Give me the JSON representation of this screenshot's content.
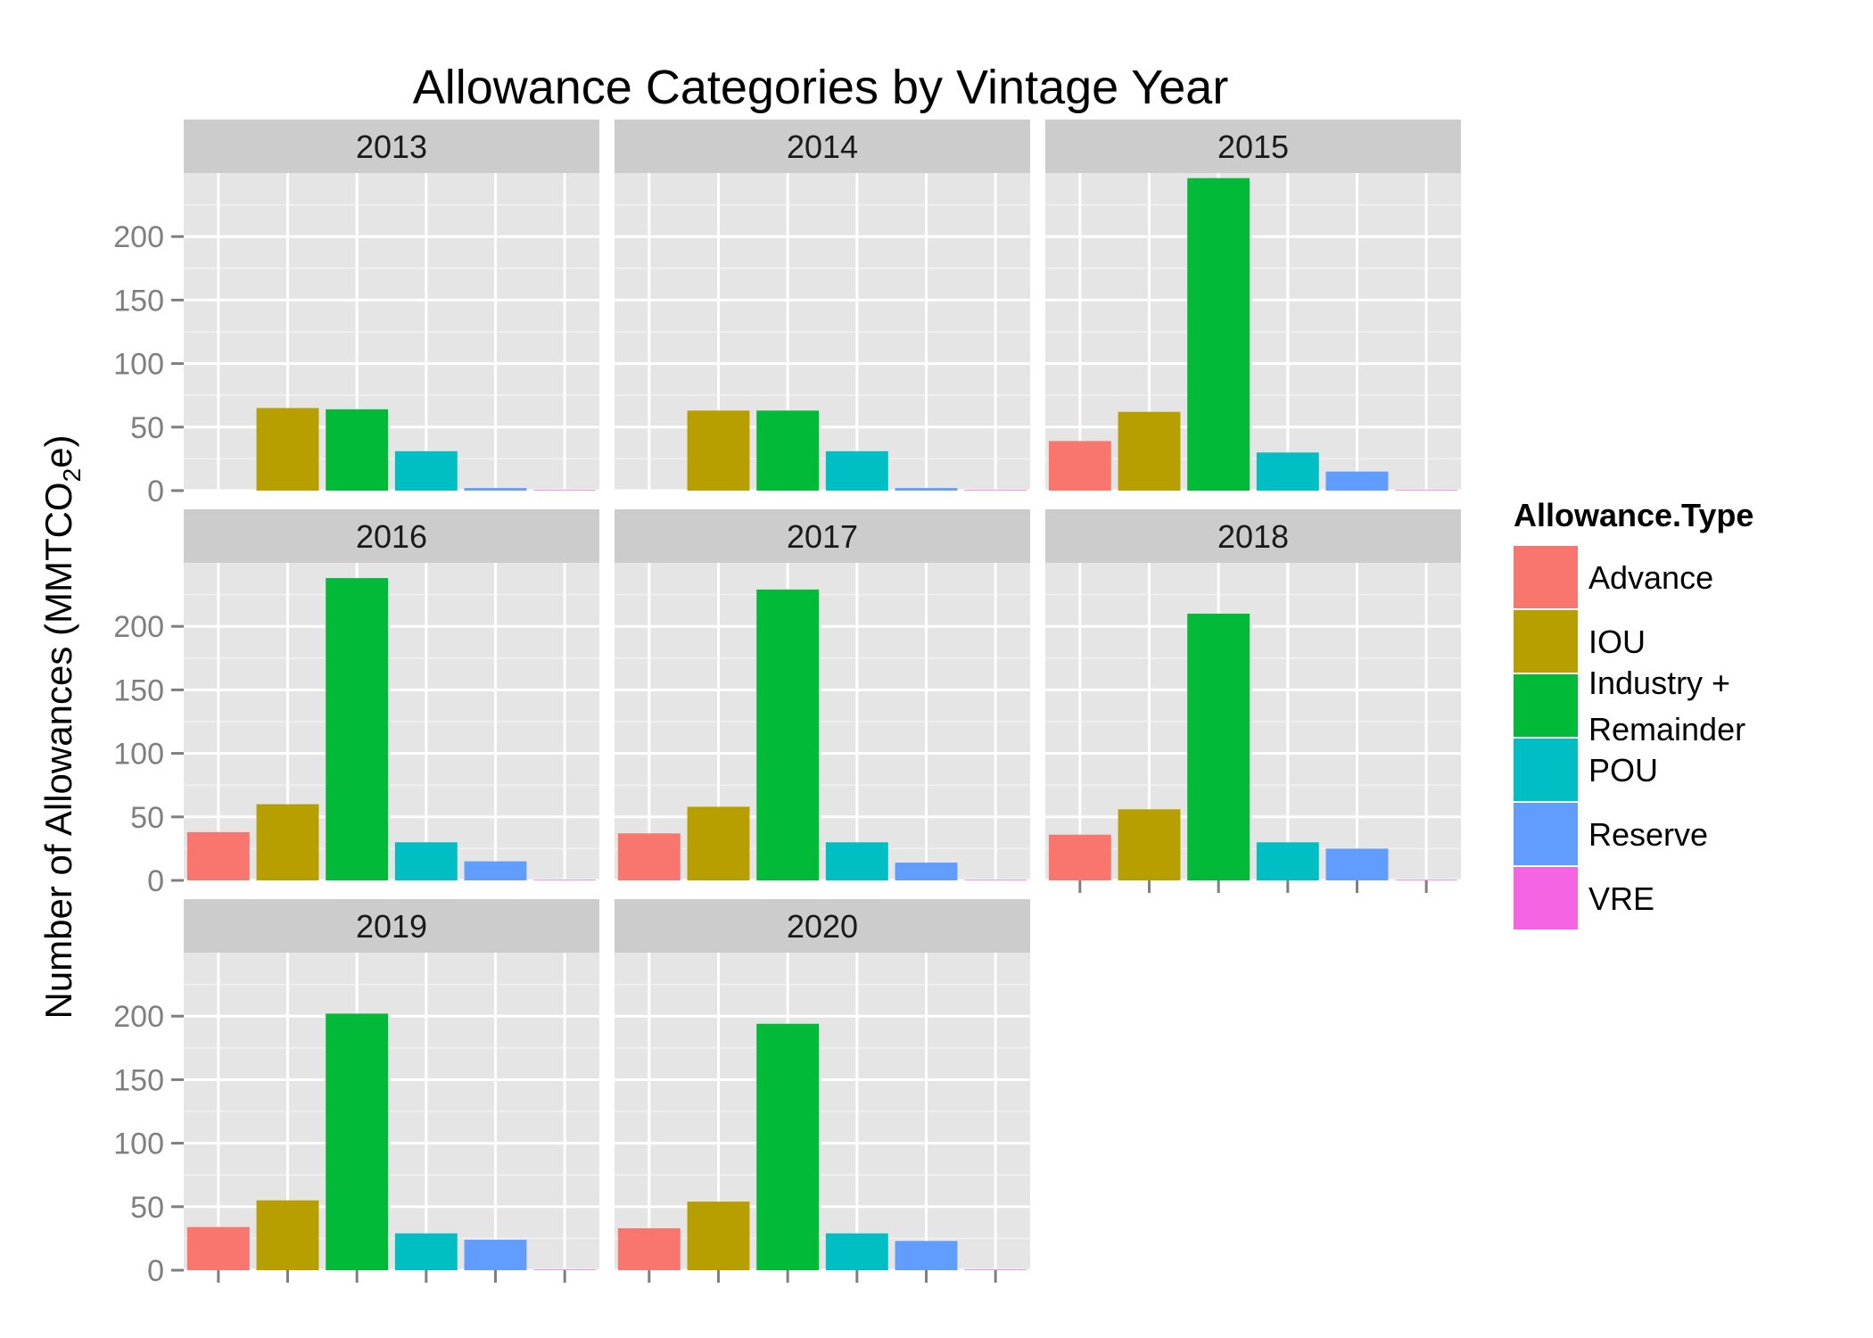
{
  "chart_data": {
    "type": "bar",
    "title": "Allowance Categories by Vintage Year",
    "ylabel": "Number of Allowances (MMTCO2e)",
    "ylabel_parts": [
      "Number of Allowances (MMTCO",
      "2",
      "e)"
    ],
    "xlabel": "",
    "ylim": [
      0,
      250
    ],
    "yticks": [
      0,
      50,
      100,
      150,
      200
    ],
    "grid": true,
    "legend_position": "right",
    "legend": {
      "title": "Allowance.Type",
      "entries": [
        {
          "label_lines": [
            "Advance"
          ]
        },
        {
          "label_lines": [
            "IOU"
          ]
        },
        {
          "label_lines": [
            "Industry +",
            "Remainder"
          ]
        },
        {
          "label_lines": [
            "POU"
          ]
        },
        {
          "label_lines": [
            "Reserve"
          ]
        },
        {
          "label_lines": [
            "VRE"
          ]
        }
      ]
    },
    "categories": [
      "Advance",
      "IOU",
      "Industry + Remainder",
      "POU",
      "Reserve",
      "VRE"
    ],
    "colors": [
      "#F8766D",
      "#B79F00",
      "#00BA38",
      "#00BFC4",
      "#619CFF",
      "#F564E3"
    ],
    "facets": [
      {
        "label": "2013",
        "values": [
          0,
          65,
          64,
          31,
          2,
          0.5
        ]
      },
      {
        "label": "2014",
        "values": [
          0,
          63,
          63,
          31,
          2,
          0.5
        ]
      },
      {
        "label": "2015",
        "values": [
          39,
          62,
          246,
          30,
          15,
          0.5
        ]
      },
      {
        "label": "2016",
        "values": [
          38,
          60,
          238,
          30,
          15,
          0.5
        ]
      },
      {
        "label": "2017",
        "values": [
          37,
          58,
          229,
          30,
          14,
          0.5
        ]
      },
      {
        "label": "2018",
        "values": [
          36,
          56,
          210,
          30,
          25,
          0.5
        ]
      },
      {
        "label": "2019",
        "values": [
          34,
          55,
          202,
          29,
          24,
          0.5
        ]
      },
      {
        "label": "2020",
        "values": [
          33,
          54,
          194,
          29,
          23,
          0.5
        ]
      }
    ]
  }
}
